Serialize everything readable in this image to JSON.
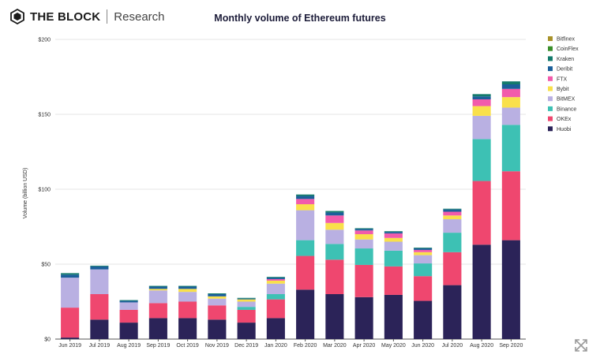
{
  "header": {
    "brand": "THE BLOCK",
    "brand_sub": "Research"
  },
  "icons": {
    "logo": "cube-logo-icon",
    "expand": "expand-arrows-icon"
  },
  "chart_data": {
    "type": "bar",
    "stacked": true,
    "title": "Monthly volume of Ethereum futures",
    "xlabel": "",
    "ylabel": "Volume (billion USD)",
    "ylim": [
      0,
      200
    ],
    "yticks": [
      0,
      50,
      100,
      150,
      200
    ],
    "ytick_labels": [
      "$0",
      "$50",
      "$100",
      "$150",
      "$200"
    ],
    "grid": true,
    "legend_position": "right",
    "categories": [
      "Jun 2019",
      "Jul 2019",
      "Aug 2019",
      "Sep 2019",
      "Oct 2019",
      "Nov 2019",
      "Dec 2019",
      "Jan 2020",
      "Feb 2020",
      "Mar 2020",
      "Apr 2020",
      "May 2020",
      "Jun 2020",
      "Jul 2020",
      "Aug 2020",
      "Sep 2020"
    ],
    "series": [
      {
        "name": "Huobi",
        "color": "#2b2358",
        "values": [
          1,
          13,
          11,
          14,
          14,
          13,
          11,
          14,
          33,
          30,
          28,
          29.5,
          25.5,
          36,
          63,
          66
        ]
      },
      {
        "name": "OKEx",
        "color": "#ef476f",
        "values": [
          20,
          17,
          8.5,
          10,
          11,
          9.5,
          8.5,
          12.5,
          22.5,
          23,
          21.5,
          19,
          16.5,
          22,
          42.5,
          46
        ]
      },
      {
        "name": "Binance",
        "color": "#3dc1b4",
        "values": [
          0,
          0,
          0,
          0,
          0,
          0,
          2,
          3.5,
          10.5,
          10.5,
          11,
          10.5,
          8.5,
          13,
          28,
          31
        ]
      },
      {
        "name": "BitMEX",
        "color": "#b9b0e2",
        "values": [
          20,
          16.5,
          5,
          8.5,
          6.5,
          4.5,
          3.5,
          7,
          20,
          9.5,
          6,
          6,
          5.5,
          9,
          15.5,
          11.5
        ]
      },
      {
        "name": "Bybit",
        "color": "#f9e04b",
        "values": [
          0,
          0,
          0,
          1,
          2,
          1.5,
          1.5,
          2,
          4,
          4.5,
          3.5,
          2.5,
          2,
          2.5,
          6.5,
          7
        ]
      },
      {
        "name": "FTX",
        "color": "#f25bab",
        "values": [
          0,
          0,
          0,
          0,
          0,
          0,
          0,
          1,
          3.5,
          5,
          2.5,
          3,
          1.5,
          2.5,
          4.5,
          5.5
        ]
      },
      {
        "name": "Deribit",
        "color": "#1b5f9a",
        "values": [
          2,
          2,
          1,
          1.5,
          1.5,
          1.5,
          0.5,
          1,
          2,
          2,
          1,
          1,
          1,
          1.5,
          2,
          3
        ]
      },
      {
        "name": "Kraken",
        "color": "#137a6b",
        "values": [
          1,
          0.5,
          0.5,
          0.5,
          0.5,
          0.5,
          0.5,
          0.5,
          1,
          1,
          0.5,
          0.5,
          0.5,
          0.5,
          1.5,
          2
        ]
      },
      {
        "name": "CoinFlex",
        "color": "#3a8f2b",
        "values": [
          0,
          0,
          0,
          0,
          0,
          0,
          0,
          0,
          0,
          0,
          0,
          0,
          0,
          0,
          0,
          0
        ]
      },
      {
        "name": "Bitfinex",
        "color": "#a8922a",
        "values": [
          0,
          0,
          0,
          0,
          0,
          0,
          0,
          0,
          0,
          0,
          0,
          0,
          0,
          0,
          0,
          0
        ]
      }
    ],
    "legend_order": [
      "Bitfinex",
      "CoinFlex",
      "Kraken",
      "Deribit",
      "FTX",
      "Bybit",
      "BitMEX",
      "Binance",
      "OKEx",
      "Huobi"
    ]
  }
}
